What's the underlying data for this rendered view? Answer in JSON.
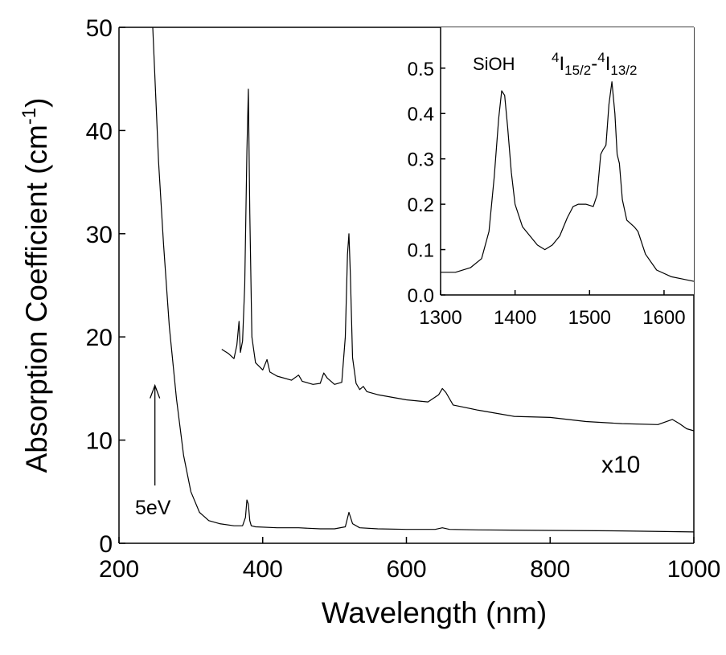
{
  "chart_data": [
    {
      "type": "line",
      "xlabel": "Wavelength (nm)",
      "ylabel_main": "Absorption Coefficient (cm",
      "ylabel_sup": "-1",
      "ylabel_close": ")",
      "xlim": [
        200,
        1000
      ],
      "ylim": [
        0,
        50
      ],
      "xticks": [
        200,
        400,
        600,
        800,
        1000
      ],
      "yticks": [
        0,
        10,
        20,
        30,
        40,
        50
      ],
      "grid": false,
      "series": [
        {
          "x": [
            247,
            255,
            262,
            270,
            280,
            290,
            300,
            312,
            325,
            340,
            360,
            372,
            376,
            378,
            380,
            382,
            384,
            390,
            420,
            450,
            480,
            500,
            515,
            520,
            525,
            535,
            560,
            600,
            640,
            650,
            660,
            700,
            800,
            900,
            1000
          ],
          "y": [
            50,
            37,
            29,
            21,
            14,
            8.5,
            5,
            3,
            2.2,
            1.9,
            1.7,
            1.7,
            2.5,
            4.2,
            3.8,
            2.2,
            1.7,
            1.6,
            1.5,
            1.5,
            1.4,
            1.4,
            1.6,
            3.0,
            1.9,
            1.5,
            1.4,
            1.35,
            1.35,
            1.5,
            1.35,
            1.3,
            1.25,
            1.2,
            1.1
          ]
        },
        {
          "x": [
            343,
            352,
            360,
            364,
            367,
            369,
            372,
            375,
            378,
            380,
            382,
            385,
            390,
            400,
            406,
            410,
            420,
            440,
            450,
            455,
            470,
            480,
            485,
            490,
            500,
            510,
            515,
            518,
            520,
            522,
            525,
            530,
            535,
            540,
            545,
            560,
            600,
            630,
            645,
            650,
            655,
            665,
            700,
            750,
            800,
            850,
            900,
            950,
            970,
            980,
            990,
            1000
          ],
          "y": [
            18.8,
            18.4,
            17.9,
            19.2,
            21.5,
            18.5,
            19.6,
            25,
            38,
            44,
            32,
            20,
            17.5,
            16.8,
            17.8,
            16.6,
            16.2,
            15.8,
            16.3,
            15.7,
            15.4,
            15.5,
            16.5,
            16.0,
            15.4,
            15.6,
            20,
            28,
            30,
            26,
            18,
            15.5,
            14.9,
            15.2,
            14.7,
            14.4,
            13.9,
            13.7,
            14.4,
            15,
            14.6,
            13.4,
            12.9,
            12.3,
            12.2,
            11.8,
            11.6,
            11.5,
            12.0,
            11.6,
            11.1,
            10.9
          ]
        }
      ],
      "annotations": {
        "arrow_label": "5eV",
        "arrow_x": 250,
        "arrow_y_from": 5.6,
        "arrow_y_to": 15.3,
        "scale_label": "x10"
      }
    },
    {
      "type": "line",
      "inset": true,
      "xlim": [
        1300,
        1640
      ],
      "ylim": [
        0,
        0.59
      ],
      "xticks": [
        1300,
        1400,
        1500,
        1600
      ],
      "yticks": [
        0.0,
        0.1,
        0.2,
        0.3,
        0.4,
        0.5
      ],
      "ytick_labels": [
        "0.0",
        "0.1",
        "0.2",
        "0.3",
        "0.4",
        "0.5"
      ],
      "grid": false,
      "series": [
        {
          "x": [
            1300,
            1320,
            1340,
            1355,
            1365,
            1372,
            1378,
            1382,
            1386,
            1390,
            1395,
            1400,
            1410,
            1420,
            1430,
            1440,
            1450,
            1460,
            1470,
            1478,
            1485,
            1495,
            1505,
            1510,
            1515,
            1518,
            1522,
            1526,
            1530,
            1534,
            1537,
            1540,
            1544,
            1550,
            1560,
            1565,
            1575,
            1590,
            1610,
            1625,
            1640
          ],
          "y": [
            0.05,
            0.05,
            0.06,
            0.08,
            0.14,
            0.26,
            0.39,
            0.45,
            0.44,
            0.37,
            0.27,
            0.2,
            0.15,
            0.13,
            0.11,
            0.1,
            0.11,
            0.13,
            0.17,
            0.195,
            0.2,
            0.2,
            0.195,
            0.22,
            0.31,
            0.32,
            0.33,
            0.42,
            0.47,
            0.4,
            0.31,
            0.29,
            0.21,
            0.165,
            0.15,
            0.14,
            0.09,
            0.055,
            0.04,
            0.035,
            0.03
          ]
        }
      ],
      "annotations": {
        "label1": "SiOH",
        "label2": {
          "sup1": "4",
          "base1": "I",
          "sub1": "15/2",
          "dash": "-",
          "sup2": "4",
          "base2": "I",
          "sub2": "13/2"
        }
      }
    }
  ]
}
